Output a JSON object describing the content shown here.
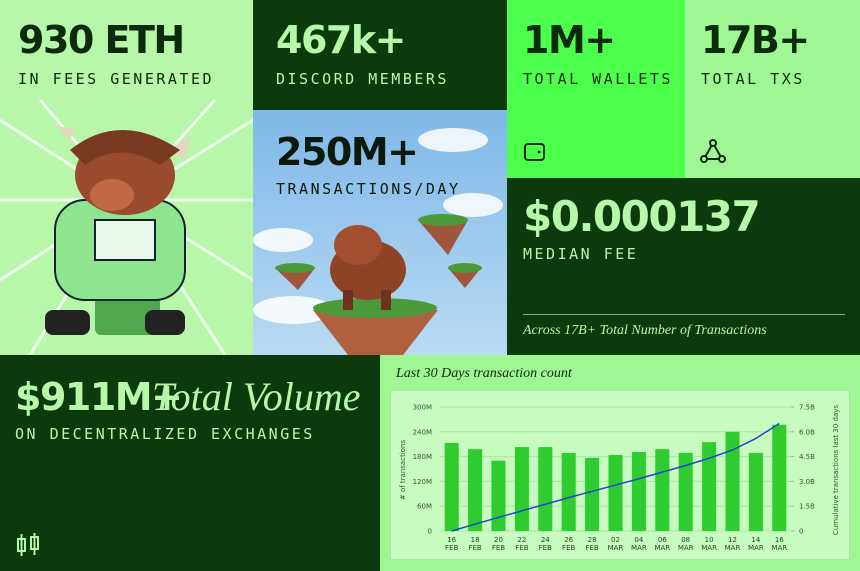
{
  "tiles": [
    {
      "value": "930 ETH",
      "label": "IN FEES GENERATED"
    },
    {
      "value": "467k+",
      "label": "DISCORD MEMBERS"
    },
    {
      "value": "250M+",
      "label": "TRANSACTIONS/DAY"
    },
    {
      "value": "1M+",
      "label": "TOTAL WALLETS"
    },
    {
      "value": "17B+",
      "label": "TOTAL TXS"
    },
    {
      "value": "$0.000137",
      "label": "MEDIAN FEE",
      "note": "Across 17B+ Total Number of Transactions"
    },
    {
      "value": "$911M+",
      "title": "Total Volume",
      "label": "ON DECENTRALIZED EXCHANGES"
    }
  ],
  "chart_data": {
    "type": "bar",
    "title": "Last 30 Days transaction count",
    "ylabel": "# of transactions",
    "y2label": "Cumulative transactions last 30 days",
    "categories": [
      "16 FEB",
      "18 FEB",
      "20 FEB",
      "22 FEB",
      "24 FEB",
      "26 FEB",
      "28 FEB",
      "02 MAR",
      "04 MAR",
      "06 MAR",
      "08 MAR",
      "10 MAR",
      "12 MAR",
      "14 MAR",
      "16 MAR"
    ],
    "series": [
      {
        "type": "bar",
        "color": "#2fcc2f",
        "values": [
          213000000,
          198000000,
          170000000,
          203000000,
          203000000,
          189000000,
          177000000,
          184000000,
          191000000,
          198000000,
          189000000,
          215000000,
          240000000,
          189000000,
          257000000
        ]
      },
      {
        "type": "line",
        "axis": "y2",
        "color": "#1f45c8",
        "values": [
          0,
          420000000,
          820000000,
          1220000000,
          1620000000,
          2020000000,
          2400000000,
          2780000000,
          3160000000,
          3560000000,
          3960000000,
          4400000000,
          4900000000,
          5600000000,
          6500000000
        ]
      }
    ],
    "ylim": [
      0,
      300000000
    ],
    "yticks": [
      0,
      {
        "value": 60000000,
        "label": "60M"
      },
      {
        "value": 120000000,
        "label": "120M"
      },
      {
        "value": 180000000,
        "label": "180M"
      },
      {
        "value": 240000000,
        "label": "240M"
      },
      {
        "value": 300000000,
        "label": "300M"
      }
    ],
    "y2lim": [
      0,
      7500000000
    ],
    "y2ticks": [
      0,
      {
        "value": 1500000000,
        "label": "1.5B"
      },
      {
        "value": 3000000000,
        "label": "3.0B"
      },
      {
        "value": 4500000000,
        "label": "4.5B"
      },
      {
        "value": 6000000000,
        "label": "6.0B"
      },
      {
        "value": 7500000000,
        "label": "7.5B"
      }
    ],
    "grid": true
  }
}
